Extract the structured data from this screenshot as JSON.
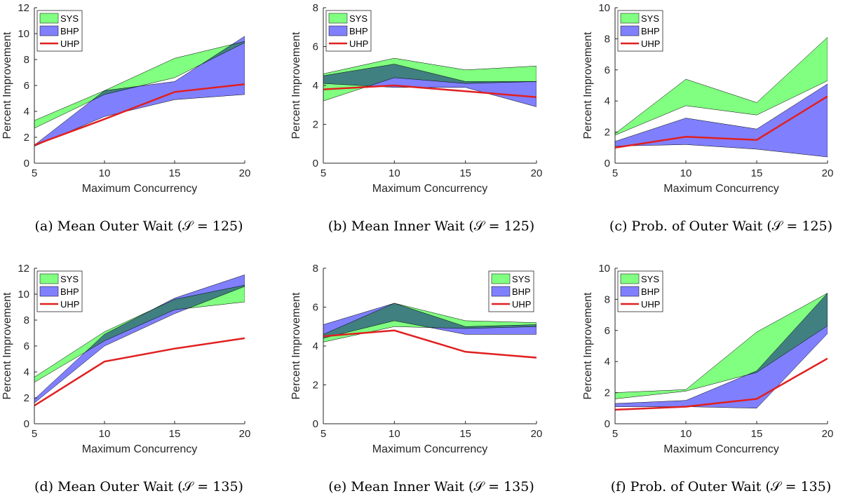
{
  "colors": {
    "SYS_fill": "#80ff80",
    "BHP_fill": "#8080ff",
    "overlap_fill": "#3a6fb7",
    "UHP_line": "#e02020"
  },
  "chart_data": [
    {
      "type": "area",
      "caption": "(a) Mean Outer Wait (𝒮 = 125)",
      "xlabel": "Maximum Concurrency",
      "ylabel": "Percent Improvement",
      "x": [
        5,
        10,
        15,
        20
      ],
      "xlim": [
        5,
        20
      ],
      "ylim": [
        0,
        12
      ],
      "yticks": [
        0,
        2,
        4,
        6,
        8,
        10,
        12
      ],
      "legend_position": "top-left",
      "series": [
        {
          "name": "SYS",
          "kind": "band",
          "lower": [
            2.7,
            5.3,
            6.6,
            9.3
          ],
          "upper": [
            3.3,
            5.6,
            8.1,
            9.4
          ]
        },
        {
          "name": "BHP",
          "kind": "band",
          "lower": [
            1.3,
            3.6,
            4.9,
            5.3
          ],
          "upper": [
            1.4,
            5.6,
            6.3,
            9.8
          ]
        },
        {
          "name": "UHP",
          "kind": "line",
          "values": [
            1.4,
            3.4,
            5.5,
            6.1
          ]
        }
      ]
    },
    {
      "type": "area",
      "caption": "(b) Mean Inner Wait (𝒮 = 125)",
      "xlabel": "Maximum Concurrency",
      "ylabel": "Percent Improvement",
      "x": [
        5,
        10,
        15,
        20
      ],
      "xlim": [
        5,
        20
      ],
      "ylim": [
        0,
        8
      ],
      "yticks": [
        0,
        2,
        4,
        6,
        8
      ],
      "legend_position": "top-left",
      "series": [
        {
          "name": "SYS",
          "kind": "band",
          "lower": [
            3.2,
            4.4,
            4.1,
            4.2
          ],
          "upper": [
            4.6,
            5.4,
            4.8,
            5.0
          ]
        },
        {
          "name": "BHP",
          "kind": "band",
          "lower": [
            4.1,
            3.9,
            3.9,
            2.9
          ],
          "upper": [
            4.5,
            5.1,
            4.2,
            4.2
          ]
        },
        {
          "name": "UHP",
          "kind": "line",
          "values": [
            3.8,
            4.0,
            3.7,
            3.4
          ]
        }
      ]
    },
    {
      "type": "area",
      "caption": "(c) Prob. of Outer Wait (𝒮 = 125)",
      "xlabel": "Maximum Concurrency",
      "ylabel": "Percent Improvement",
      "x": [
        5,
        10,
        15,
        20
      ],
      "xlim": [
        5,
        20
      ],
      "ylim": [
        0,
        10
      ],
      "yticks": [
        0,
        2,
        4,
        6,
        8,
        10
      ],
      "legend_position": "top-left",
      "series": [
        {
          "name": "SYS",
          "kind": "band",
          "lower": [
            1.8,
            3.7,
            3.1,
            5.3
          ],
          "upper": [
            1.9,
            5.4,
            3.9,
            8.1
          ]
        },
        {
          "name": "BHP",
          "kind": "band",
          "lower": [
            1.1,
            1.2,
            0.9,
            0.4
          ],
          "upper": [
            1.4,
            2.9,
            2.2,
            5.1
          ]
        },
        {
          "name": "UHP",
          "kind": "line",
          "values": [
            1.0,
            1.7,
            1.5,
            4.3
          ]
        }
      ]
    },
    {
      "type": "area",
      "caption": "(d) Mean Outer Wait (𝒮 = 135)",
      "xlabel": "Maximum Concurrency",
      "ylabel": "Percent Improvement",
      "x": [
        5,
        10,
        15,
        20
      ],
      "xlim": [
        5,
        20
      ],
      "ylim": [
        0,
        12
      ],
      "yticks": [
        0,
        2,
        4,
        6,
        8,
        10,
        12
      ],
      "legend_position": "top-left",
      "series": [
        {
          "name": "SYS",
          "kind": "band",
          "lower": [
            3.2,
            6.4,
            8.8,
            9.4
          ],
          "upper": [
            3.6,
            7.1,
            9.6,
            10.7
          ]
        },
        {
          "name": "BHP",
          "kind": "band",
          "lower": [
            1.6,
            6.0,
            8.5,
            10.6
          ],
          "upper": [
            1.9,
            6.9,
            9.7,
            11.5
          ]
        },
        {
          "name": "UHP",
          "kind": "line",
          "values": [
            1.4,
            4.8,
            5.8,
            6.6
          ]
        }
      ]
    },
    {
      "type": "area",
      "caption": "(e) Mean Inner Wait (𝒮 = 135)",
      "xlabel": "Maximum Concurrency",
      "ylabel": "Percent Improvement",
      "x": [
        5,
        10,
        15,
        20
      ],
      "xlim": [
        5,
        20
      ],
      "ylim": [
        0,
        8
      ],
      "yticks": [
        0,
        2,
        4,
        6,
        8
      ],
      "legend_position": "top-right",
      "series": [
        {
          "name": "SYS",
          "kind": "band",
          "lower": [
            4.2,
            5.0,
            4.9,
            5.0
          ],
          "upper": [
            4.6,
            6.2,
            5.3,
            5.2
          ]
        },
        {
          "name": "BHP",
          "kind": "band",
          "lower": [
            4.4,
            5.3,
            4.6,
            4.6
          ],
          "upper": [
            5.1,
            6.2,
            5.0,
            5.1
          ]
        },
        {
          "name": "UHP",
          "kind": "line",
          "values": [
            4.5,
            4.8,
            3.7,
            3.4
          ]
        }
      ]
    },
    {
      "type": "area",
      "caption": "(f) Prob. of Outer Wait (𝒮 = 135)",
      "xlabel": "Maximum Concurrency",
      "ylabel": "Percent Improvement",
      "x": [
        5,
        10,
        15,
        20
      ],
      "xlim": [
        5,
        20
      ],
      "ylim": [
        0,
        10
      ],
      "yticks": [
        0,
        2,
        4,
        6,
        8,
        10
      ],
      "legend_position": "top-left",
      "series": [
        {
          "name": "SYS",
          "kind": "band",
          "lower": [
            1.6,
            2.1,
            3.3,
            6.3
          ],
          "upper": [
            2.0,
            2.2,
            5.9,
            8.4
          ]
        },
        {
          "name": "BHP",
          "kind": "band",
          "lower": [
            1.1,
            1.1,
            1.0,
            5.8
          ],
          "upper": [
            1.3,
            1.5,
            3.4,
            8.4
          ]
        },
        {
          "name": "UHP",
          "kind": "line",
          "values": [
            0.9,
            1.1,
            1.6,
            4.2
          ]
        }
      ]
    }
  ]
}
